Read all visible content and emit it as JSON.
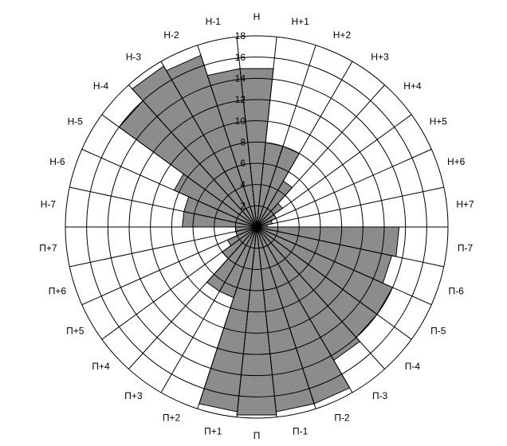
{
  "chart_data": {
    "type": "rose",
    "categories": [
      "Н",
      "Н+1",
      "Н+2",
      "Н+3",
      "Н+4",
      "Н+5",
      "Н+6",
      "Н+7",
      "П-7",
      "П-6",
      "П-5",
      "П-4",
      "П-3",
      "П-2",
      "П-1",
      "П",
      "П+1",
      "П+2",
      "П+3",
      "П+4",
      "П+5",
      "П+6",
      "П+7",
      "Н-7",
      "Н-6",
      "Н-5",
      "Н-4",
      "Н-3",
      "Н-2",
      "Н-1"
    ],
    "values": [
      15,
      8,
      8,
      5,
      3,
      2,
      1.5,
      1,
      13.4,
      13,
      14,
      14,
      14.5,
      17.5,
      17.5,
      17.8,
      17.5,
      7,
      7,
      4,
      3,
      2,
      2,
      7,
      7,
      8.5,
      16,
      17.5,
      17,
      15
    ],
    "color": "#8c8c8c",
    "ylim": [
      0,
      18
    ],
    "yticks": [
      2,
      4,
      6,
      8,
      10,
      12,
      14,
      16,
      18
    ],
    "grid": true
  }
}
